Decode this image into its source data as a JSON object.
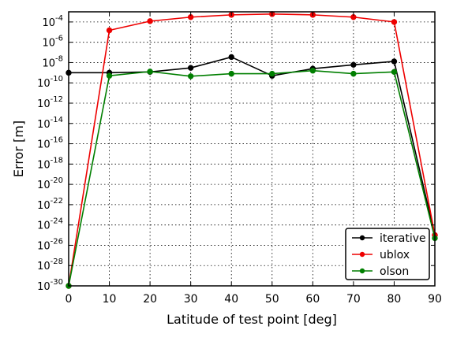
{
  "chart_data": {
    "type": "line",
    "title": "",
    "xlabel": "Latitude of test point [deg]",
    "ylabel": "Error [m]",
    "xlim": [
      0,
      90
    ],
    "ylim_log10": [
      -30,
      -3
    ],
    "y_scale": "log",
    "grid": true,
    "legend_placement": "bottom-right",
    "x_ticks": [
      "0",
      "10",
      "20",
      "30",
      "40",
      "50",
      "60",
      "70",
      "80",
      "90"
    ],
    "y_ticks": [
      {
        "base": "10",
        "exp": "-30"
      },
      {
        "base": "10",
        "exp": "-28"
      },
      {
        "base": "10",
        "exp": "-26"
      },
      {
        "base": "10",
        "exp": "-24"
      },
      {
        "base": "10",
        "exp": "-22"
      },
      {
        "base": "10",
        "exp": "-20"
      },
      {
        "base": "10",
        "exp": "-18"
      },
      {
        "base": "10",
        "exp": "-16"
      },
      {
        "base": "10",
        "exp": "-14"
      },
      {
        "base": "10",
        "exp": "-12"
      },
      {
        "base": "10",
        "exp": "-10"
      },
      {
        "base": "10",
        "exp": "-8"
      },
      {
        "base": "10",
        "exp": "-6"
      },
      {
        "base": "10",
        "exp": "-4"
      }
    ],
    "x": [
      0,
      10,
      20,
      30,
      40,
      50,
      60,
      70,
      80,
      90
    ],
    "series": [
      {
        "name": "iterative",
        "color": "#000000",
        "values": [
          1e-09,
          1e-09,
          1.2e-09,
          3e-09,
          3.5e-08,
          5e-10,
          2.5e-09,
          6e-09,
          1.3e-08,
          1e-25
        ]
      },
      {
        "name": "ublox",
        "color": "#ee0000",
        "values": [
          1e-30,
          1.5e-05,
          0.00012,
          0.0003,
          0.0005,
          0.0006,
          0.0005,
          0.0003,
          0.0001,
          1e-25
        ]
      },
      {
        "name": "olson",
        "color": "#007f00",
        "values": [
          1e-30,
          5e-10,
          1.3e-09,
          4.5e-10,
          8e-10,
          8e-10,
          1.6e-09,
          8e-10,
          1.2e-09,
          5e-26
        ]
      }
    ]
  }
}
